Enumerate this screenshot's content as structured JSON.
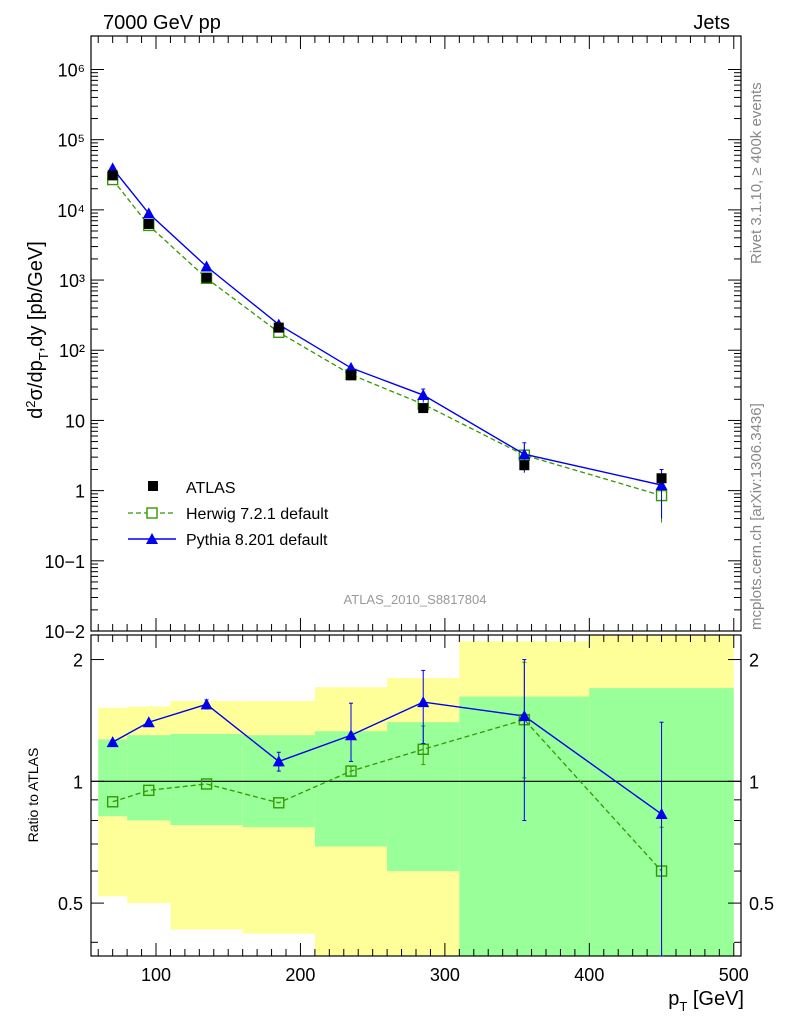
{
  "header": {
    "left": "7000 GeV pp",
    "right": "Jets"
  },
  "side_text": {
    "top": "Rivet 3.1.10, ≥ 400k events",
    "bottom": "mcplots.cern.ch [arXiv:1306.3436]"
  },
  "analysis_label": "ATLAS_2010_S8817804",
  "colors": {
    "data": "#000000",
    "herwig": "#339900",
    "pythia": "#0000ee",
    "band_outer": "#ffff99",
    "band_inner": "#99ff99"
  },
  "chart_data": [
    {
      "type": "scatter",
      "ylabel": "d²σ/dp_T,dy [pb/GeV]",
      "yscale": "log",
      "xlim": [
        55,
        505
      ],
      "ylim": [
        0.01,
        3000000
      ],
      "ytick_labels": [
        "10−2",
        "10−1",
        "1",
        "10",
        "10²",
        "10³",
        "10⁴",
        "10⁵",
        "10⁶"
      ],
      "x": [
        70,
        95,
        135,
        185,
        235,
        285,
        355,
        450
      ],
      "x_bin_edges": [
        60,
        80,
        110,
        160,
        210,
        260,
        310,
        400,
        500
      ],
      "series": [
        {
          "name": "ATLAS",
          "marker": "filled-square",
          "values": [
            31000,
            6300,
            1080,
            210,
            44,
            15,
            2.3,
            1.5
          ]
        },
        {
          "name": "Herwig 7.2.1 default",
          "marker": "open-square",
          "line": "dashed",
          "values": [
            27000,
            6000,
            1060,
            180,
            45,
            17,
            3.2,
            0.85
          ],
          "errors": [
            0,
            0,
            0,
            0,
            0,
            3,
            1.3,
            0.5
          ]
        },
        {
          "name": "Pythia 8.201 default",
          "marker": "triangle",
          "line": "solid",
          "values": [
            39000,
            8900,
            1560,
            232,
            56,
            23,
            3.3,
            1.2
          ],
          "errors": [
            0,
            0,
            0,
            0,
            0,
            5,
            1.5,
            0.8
          ]
        }
      ],
      "legend": {
        "position": "lower-left",
        "entries": [
          "ATLAS",
          "Herwig 7.2.1 default",
          "Pythia 8.201 default"
        ]
      }
    },
    {
      "type": "scatter",
      "ylabel": "Ratio to ATLAS",
      "xlabel": "p_T [GeV]",
      "yscale": "log",
      "xlim": [
        55,
        505
      ],
      "ylim": [
        0.37,
        2.3
      ],
      "xticks": [
        100,
        200,
        300,
        400,
        500
      ],
      "yticks": [
        0.5,
        1,
        2
      ],
      "ytick_labels": [
        "0.5",
        "1",
        "2"
      ],
      "reference_line": 1,
      "x": [
        70,
        95,
        135,
        185,
        235,
        285,
        355,
        450
      ],
      "bands": {
        "bin_edges": [
          60,
          80,
          110,
          160,
          210,
          260,
          310,
          400,
          500
        ],
        "inner_upper": [
          1.27,
          1.3,
          1.31,
          1.3,
          1.33,
          1.4,
          1.62,
          1.7
        ],
        "inner_lower": [
          0.82,
          0.8,
          0.78,
          0.77,
          0.69,
          0.6,
          0.0,
          0.0
        ],
        "outer_upper": [
          1.52,
          1.53,
          1.58,
          1.58,
          1.71,
          1.8,
          2.22,
          2.4
        ],
        "outer_lower": [
          0.52,
          0.5,
          0.43,
          0.42,
          0.0,
          0.0,
          0.0,
          0.0
        ]
      },
      "series": [
        {
          "name": "Herwig 7.2.1 default",
          "values": [
            0.89,
            0.95,
            0.985,
            0.885,
            1.06,
            1.2,
            1.42,
            0.6
          ],
          "err_low": [
            0,
            0,
            0,
            0,
            0.03,
            0.1,
            0.4,
            0.26
          ],
          "err_high": [
            0,
            0,
            0,
            0,
            0.03,
            0.17,
            0.55,
            0.17
          ]
        },
        {
          "name": "Pythia 8.201 default",
          "values": [
            1.25,
            1.4,
            1.55,
            1.12,
            1.3,
            1.57,
            1.45,
            0.83
          ],
          "err_low": [
            0,
            0,
            0.04,
            0.06,
            0.18,
            0.33,
            0.65,
            0.47
          ],
          "err_high": [
            0,
            0,
            0.04,
            0.06,
            0.26,
            0.31,
            0.55,
            0.57
          ]
        }
      ]
    }
  ]
}
